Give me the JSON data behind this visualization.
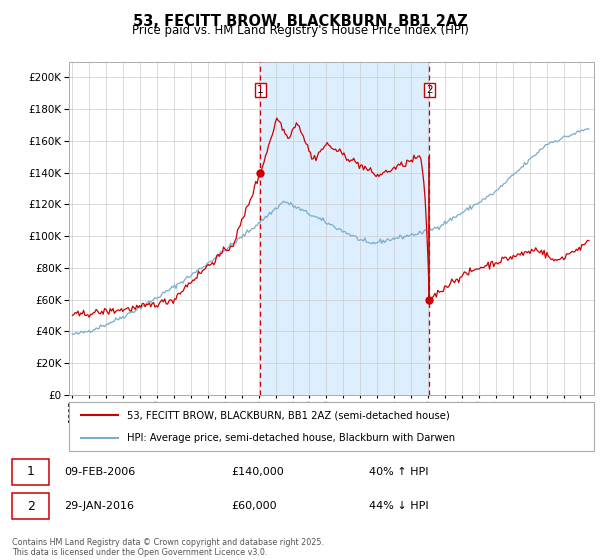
{
  "title": "53, FECITT BROW, BLACKBURN, BB1 2AZ",
  "subtitle": "Price paid vs. HM Land Registry's House Price Index (HPI)",
  "legend_line1": "53, FECITT BROW, BLACKBURN, BB1 2AZ (semi-detached house)",
  "legend_line2": "HPI: Average price, semi-detached house, Blackburn with Darwen",
  "annotation1_date": "09-FEB-2006",
  "annotation1_price": "£140,000",
  "annotation1_hpi": "40% ↑ HPI",
  "annotation2_date": "29-JAN-2016",
  "annotation2_price": "£60,000",
  "annotation2_hpi": "44% ↓ HPI",
  "event1_year": 2006.1,
  "event1_price": 140000,
  "event2_year": 2016.08,
  "event2_price": 60000,
  "red_color": "#cc0000",
  "blue_color": "#7aadcc",
  "background_color": "#ffffff",
  "grid_color": "#cccccc",
  "shade_color": "#ddeeff",
  "footer": "Contains HM Land Registry data © Crown copyright and database right 2025.\nThis data is licensed under the Open Government Licence v3.0.",
  "ylim": [
    0,
    210000
  ],
  "xlim_start": 1994.8,
  "xlim_end": 2025.8
}
